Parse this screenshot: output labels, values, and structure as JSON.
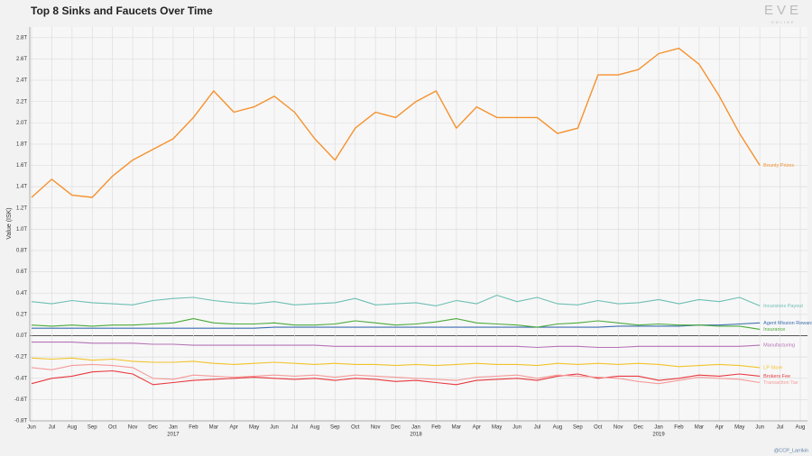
{
  "chart_data": {
    "type": "line",
    "title": "Top 8 Sinks and Faucets Over Time",
    "y_label": "Value (ISK)",
    "logo": "EVE",
    "logo_sub": "ONLINE",
    "credit": "@CCP_Larrikin",
    "grid": true,
    "x": [
      "2016-06",
      "2016-07",
      "2016-08",
      "2016-09",
      "2016-10",
      "2016-11",
      "2016-12",
      "2017-01",
      "2017-02",
      "2017-03",
      "2017-04",
      "2017-05",
      "2017-06",
      "2017-07",
      "2017-08",
      "2017-09",
      "2017-10",
      "2017-11",
      "2017-12",
      "2018-01",
      "2018-02",
      "2018-03",
      "2018-04",
      "2018-05",
      "2018-06",
      "2018-07",
      "2018-08",
      "2018-09",
      "2018-10",
      "2018-11",
      "2018-12",
      "2019-01",
      "2019-02",
      "2019-03",
      "2019-04",
      "2019-05",
      "2019-06"
    ],
    "xlim": [
      "2016-06",
      "2019-08"
    ],
    "xticks": [
      {
        "value": "2016-06",
        "label": "Jun"
      },
      {
        "value": "2016-07",
        "label": "Jul"
      },
      {
        "value": "2016-08",
        "label": "Aug"
      },
      {
        "value": "2016-09",
        "label": "Sep"
      },
      {
        "value": "2016-10",
        "label": "Oct"
      },
      {
        "value": "2016-11",
        "label": "Nov"
      },
      {
        "value": "2016-12",
        "label": "Dec"
      },
      {
        "value": "2017-01",
        "label": "Jan"
      },
      {
        "value": "2017-02",
        "label": "Feb"
      },
      {
        "value": "2017-03",
        "label": "Mar"
      },
      {
        "value": "2017-04",
        "label": "Apr"
      },
      {
        "value": "2017-05",
        "label": "May"
      },
      {
        "value": "2017-06",
        "label": "Jun"
      },
      {
        "value": "2017-07",
        "label": "Jul"
      },
      {
        "value": "2017-08",
        "label": "Aug"
      },
      {
        "value": "2017-09",
        "label": "Sep"
      },
      {
        "value": "2017-10",
        "label": "Oct"
      },
      {
        "value": "2017-11",
        "label": "Nov"
      },
      {
        "value": "2017-12",
        "label": "Dec"
      },
      {
        "value": "2018-01",
        "label": "Jan"
      },
      {
        "value": "2018-02",
        "label": "Feb"
      },
      {
        "value": "2018-03",
        "label": "Mar"
      },
      {
        "value": "2018-04",
        "label": "Apr"
      },
      {
        "value": "2018-05",
        "label": "May"
      },
      {
        "value": "2018-06",
        "label": "Jun"
      },
      {
        "value": "2018-07",
        "label": "Jul"
      },
      {
        "value": "2018-08",
        "label": "Aug"
      },
      {
        "value": "2018-09",
        "label": "Sep"
      },
      {
        "value": "2018-10",
        "label": "Oct"
      },
      {
        "value": "2018-11",
        "label": "Nov"
      },
      {
        "value": "2018-12",
        "label": "Dec"
      },
      {
        "value": "2019-01",
        "label": "Jan"
      },
      {
        "value": "2019-02",
        "label": "Feb"
      },
      {
        "value": "2019-03",
        "label": "Mar"
      },
      {
        "value": "2019-04",
        "label": "Apr"
      },
      {
        "value": "2019-05",
        "label": "May"
      },
      {
        "value": "2019-06",
        "label": "Jun"
      },
      {
        "value": "2019-07",
        "label": "Jul"
      },
      {
        "value": "2019-08",
        "label": "Aug"
      }
    ],
    "year_labels": [
      {
        "value": "2017-01",
        "label": "2017"
      },
      {
        "value": "2018-01",
        "label": "2018"
      },
      {
        "value": "2019-01",
        "label": "2019"
      }
    ],
    "ylim": [
      -0.8,
      2.9
    ],
    "yticks": [
      {
        "value": -0.8,
        "label": "-0.8T"
      },
      {
        "value": -0.6,
        "label": "-0.6T"
      },
      {
        "value": -0.4,
        "label": "-0.4T"
      },
      {
        "value": -0.2,
        "label": "-0.2T"
      },
      {
        "value": 0,
        "label": "0.0T"
      },
      {
        "value": 0.2,
        "label": "0.2T"
      },
      {
        "value": 0.4,
        "label": "0.4T"
      },
      {
        "value": 0.6,
        "label": "0.6T"
      },
      {
        "value": 0.8,
        "label": "0.8T"
      },
      {
        "value": 1.0,
        "label": "1.0T"
      },
      {
        "value": 1.2,
        "label": "1.2T"
      },
      {
        "value": 1.4,
        "label": "1.4T"
      },
      {
        "value": 1.6,
        "label": "1.6T"
      },
      {
        "value": 1.8,
        "label": "1.8T"
      },
      {
        "value": 2.0,
        "label": "2.0T"
      },
      {
        "value": 2.2,
        "label": "2.2T"
      },
      {
        "value": 2.4,
        "label": "2.4T"
      },
      {
        "value": 2.6,
        "label": "2.6T"
      },
      {
        "value": 2.8,
        "label": "2.8T"
      }
    ],
    "series": [
      {
        "name": "Bounty Prizes",
        "color": "#f5922e",
        "values": [
          1.3,
          1.47,
          1.32,
          1.3,
          1.5,
          1.65,
          1.75,
          1.85,
          2.05,
          2.3,
          2.1,
          2.15,
          2.25,
          2.1,
          1.85,
          1.65,
          1.95,
          2.1,
          2.05,
          2.2,
          2.3,
          1.95,
          2.15,
          2.05,
          2.05,
          2.05,
          1.9,
          1.95,
          2.45,
          2.45,
          2.5,
          2.65,
          2.7,
          2.55,
          2.25,
          1.9,
          1.6
        ]
      },
      {
        "name": "Incursions Payout",
        "color": "#6dbfb3",
        "values": [
          0.32,
          0.3,
          0.33,
          0.31,
          0.3,
          0.29,
          0.33,
          0.35,
          0.36,
          0.33,
          0.31,
          0.3,
          0.32,
          0.29,
          0.3,
          0.31,
          0.35,
          0.29,
          0.3,
          0.31,
          0.28,
          0.33,
          0.3,
          0.38,
          0.32,
          0.36,
          0.3,
          0.29,
          0.33,
          0.3,
          0.31,
          0.34,
          0.3,
          0.34,
          0.32,
          0.36,
          0.28
        ]
      },
      {
        "name": "Agent Mission Rewards",
        "color": "#3b6db0",
        "values": [
          0.07,
          0.07,
          0.07,
          0.07,
          0.07,
          0.07,
          0.07,
          0.07,
          0.07,
          0.07,
          0.07,
          0.07,
          0.08,
          0.08,
          0.08,
          0.08,
          0.08,
          0.08,
          0.08,
          0.08,
          0.08,
          0.08,
          0.08,
          0.08,
          0.08,
          0.08,
          0.08,
          0.08,
          0.08,
          0.09,
          0.09,
          0.09,
          0.09,
          0.1,
          0.1,
          0.11,
          0.12
        ]
      },
      {
        "name": "Insurance",
        "color": "#4aaa3a",
        "values": [
          0.1,
          0.09,
          0.1,
          0.09,
          0.1,
          0.1,
          0.11,
          0.12,
          0.16,
          0.12,
          0.11,
          0.11,
          0.12,
          0.1,
          0.1,
          0.11,
          0.14,
          0.12,
          0.1,
          0.11,
          0.13,
          0.16,
          0.12,
          0.11,
          0.1,
          0.08,
          0.11,
          0.12,
          0.14,
          0.12,
          0.1,
          0.11,
          0.1,
          0.1,
          0.09,
          0.09,
          0.06
        ]
      },
      {
        "name": "Manufacturing",
        "color": "#b572b5",
        "values": [
          -0.06,
          -0.06,
          -0.06,
          -0.07,
          -0.07,
          -0.07,
          -0.08,
          -0.08,
          -0.09,
          -0.09,
          -0.09,
          -0.09,
          -0.09,
          -0.09,
          -0.09,
          -0.1,
          -0.1,
          -0.1,
          -0.1,
          -0.1,
          -0.1,
          -0.1,
          -0.1,
          -0.1,
          -0.1,
          -0.11,
          -0.1,
          -0.1,
          -0.11,
          -0.11,
          -0.1,
          -0.1,
          -0.1,
          -0.1,
          -0.1,
          -0.1,
          -0.09
        ]
      },
      {
        "name": "LP Store",
        "color": "#f2c32a",
        "values": [
          -0.21,
          -0.22,
          -0.21,
          -0.23,
          -0.22,
          -0.24,
          -0.25,
          -0.25,
          -0.24,
          -0.26,
          -0.27,
          -0.26,
          -0.25,
          -0.26,
          -0.27,
          -0.26,
          -0.27,
          -0.27,
          -0.28,
          -0.27,
          -0.28,
          -0.27,
          -0.26,
          -0.27,
          -0.27,
          -0.28,
          -0.26,
          -0.27,
          -0.26,
          -0.27,
          -0.26,
          -0.27,
          -0.29,
          -0.28,
          -0.27,
          -0.28,
          -0.3
        ]
      },
      {
        "name": "Brokers Fee",
        "color": "#e8393f",
        "values": [
          -0.45,
          -0.4,
          -0.38,
          -0.34,
          -0.33,
          -0.36,
          -0.46,
          -0.44,
          -0.42,
          -0.41,
          -0.4,
          -0.39,
          -0.4,
          -0.41,
          -0.4,
          -0.42,
          -0.4,
          -0.41,
          -0.43,
          -0.42,
          -0.44,
          -0.46,
          -0.42,
          -0.41,
          -0.4,
          -0.42,
          -0.38,
          -0.36,
          -0.4,
          -0.38,
          -0.38,
          -0.42,
          -0.4,
          -0.37,
          -0.38,
          -0.36,
          -0.38
        ]
      },
      {
        "name": "Transaction Tax",
        "color": "#f59a9a",
        "values": [
          -0.3,
          -0.32,
          -0.28,
          -0.27,
          -0.28,
          -0.3,
          -0.4,
          -0.41,
          -0.37,
          -0.38,
          -0.39,
          -0.38,
          -0.37,
          -0.38,
          -0.37,
          -0.39,
          -0.37,
          -0.38,
          -0.39,
          -0.4,
          -0.41,
          -0.42,
          -0.39,
          -0.38,
          -0.37,
          -0.4,
          -0.37,
          -0.38,
          -0.39,
          -0.4,
          -0.43,
          -0.45,
          -0.42,
          -0.39,
          -0.4,
          -0.41,
          -0.44
        ]
      }
    ]
  }
}
